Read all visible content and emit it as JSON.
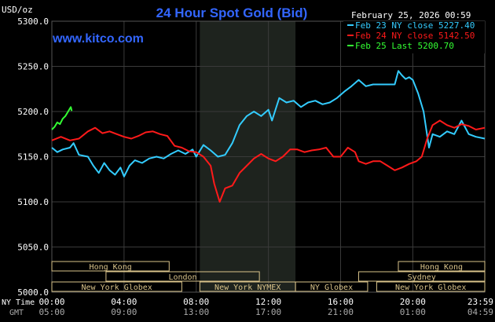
{
  "header": {
    "title": "24 Hour Spot Gold (Bid)",
    "date": "February 25, 2026 00:59",
    "site": "www.kitco.com",
    "unit": "USD/oz"
  },
  "legend": [
    {
      "text": "Feb 23 NY close 5227.40",
      "color": "#33ccff"
    },
    {
      "text": "Feb 24 NY close 5142.50",
      "color": "#ff1a1a"
    },
    {
      "text": "Feb 25 Last 5200.70",
      "color": "#33ff33"
    }
  ],
  "axis_row_labels": {
    "ny": "NY Time",
    "gmt": "GMT"
  },
  "markets": [
    {
      "label": "Hong Kong",
      "start": 0,
      "end": 6.5,
      "row": 0
    },
    {
      "label": "Hong Kong",
      "start": 19.2,
      "end": 23.99,
      "row": 0
    },
    {
      "label": "London",
      "start": 3,
      "end": 11.5,
      "row": 1
    },
    {
      "label": "Sydney",
      "start": 17,
      "end": 23.99,
      "row": 1
    },
    {
      "label": "New York Globex",
      "start": 0,
      "end": 7.2,
      "row": 2
    },
    {
      "label": "New York NYMEX",
      "start": 8.2,
      "end": 13.5,
      "row": 2
    },
    {
      "label": "NY Globex",
      "start": 13.5,
      "end": 17.5,
      "row": 2
    },
    {
      "label": "New York Globex",
      "start": 18,
      "end": 23.99,
      "row": 2
    }
  ],
  "colors": {
    "background": "#000000",
    "grid": "#3a3a3a",
    "session_shade": "#1e231e",
    "axis_text": "#ffffff",
    "title": "#3366ff",
    "market_bar": "#d9c38a"
  },
  "chart_data": {
    "type": "line",
    "title": "24 Hour Spot Gold (Bid)",
    "ylabel": "USD/oz",
    "ylim": [
      5000,
      5300
    ],
    "yticks": [
      "5000.0",
      "5050.0",
      "5100.0",
      "5150.0",
      "5200.0",
      "5250.0",
      "5300.0"
    ],
    "xlim": [
      0,
      23.99
    ],
    "xticks_ny": [
      "00:00",
      "04:00",
      "08:00",
      "12:00",
      "16:00",
      "20:00",
      "23:59"
    ],
    "xticks_gmt": [
      "05:00",
      "09:00",
      "13:00",
      "17:00",
      "21:00",
      "01:00",
      "04:59"
    ],
    "x_tick_hours": [
      0,
      4,
      8,
      12,
      16,
      20,
      23.99
    ],
    "shaded_session_hours": [
      8.2,
      13.5
    ],
    "grid": true,
    "legend_position": "top-right",
    "series": [
      {
        "name": "Feb 23 NY close 5227.40",
        "color": "#33ccff",
        "points": [
          [
            0,
            5160
          ],
          [
            0.3,
            5155
          ],
          [
            0.6,
            5158
          ],
          [
            1.0,
            5160
          ],
          [
            1.2,
            5165
          ],
          [
            1.5,
            5152
          ],
          [
            2.0,
            5150
          ],
          [
            2.3,
            5140
          ],
          [
            2.6,
            5132
          ],
          [
            2.9,
            5143
          ],
          [
            3.2,
            5135
          ],
          [
            3.5,
            5130
          ],
          [
            3.8,
            5138
          ],
          [
            4.0,
            5128
          ],
          [
            4.3,
            5140
          ],
          [
            4.6,
            5146
          ],
          [
            5.0,
            5143
          ],
          [
            5.4,
            5148
          ],
          [
            5.8,
            5150
          ],
          [
            6.2,
            5148
          ],
          [
            6.6,
            5153
          ],
          [
            7.0,
            5157
          ],
          [
            7.4,
            5153
          ],
          [
            7.8,
            5158
          ],
          [
            8.0,
            5150
          ],
          [
            8.4,
            5163
          ],
          [
            8.8,
            5157
          ],
          [
            9.2,
            5150
          ],
          [
            9.6,
            5152
          ],
          [
            10.0,
            5165
          ],
          [
            10.4,
            5185
          ],
          [
            10.8,
            5195
          ],
          [
            11.2,
            5200
          ],
          [
            11.6,
            5195
          ],
          [
            12.0,
            5202
          ],
          [
            12.2,
            5190
          ],
          [
            12.6,
            5215
          ],
          [
            13.0,
            5210
          ],
          [
            13.4,
            5212
          ],
          [
            13.8,
            5205
          ],
          [
            14.2,
            5210
          ],
          [
            14.6,
            5212
          ],
          [
            15.0,
            5208
          ],
          [
            15.4,
            5210
          ],
          [
            15.8,
            5215
          ],
          [
            16.2,
            5222
          ],
          [
            16.6,
            5228
          ],
          [
            17.0,
            5235
          ],
          [
            17.4,
            5228
          ],
          [
            17.8,
            5230
          ],
          [
            18.2,
            5230
          ],
          [
            18.6,
            5230
          ],
          [
            19.0,
            5230
          ],
          [
            19.2,
            5245
          ],
          [
            19.4,
            5240
          ],
          [
            19.6,
            5236
          ],
          [
            19.8,
            5238
          ],
          [
            20.0,
            5235
          ],
          [
            20.3,
            5220
          ],
          [
            20.6,
            5200
          ],
          [
            20.9,
            5160
          ],
          [
            21.1,
            5175
          ],
          [
            21.5,
            5172
          ],
          [
            21.9,
            5178
          ],
          [
            22.3,
            5175
          ],
          [
            22.7,
            5190
          ],
          [
            23.1,
            5175
          ],
          [
            23.5,
            5172
          ],
          [
            23.99,
            5170
          ]
        ]
      },
      {
        "name": "Feb 24 NY close 5142.50",
        "color": "#ff1a1a",
        "points": [
          [
            0,
            5168
          ],
          [
            0.5,
            5172
          ],
          [
            1.0,
            5168
          ],
          [
            1.5,
            5170
          ],
          [
            2.0,
            5178
          ],
          [
            2.4,
            5182
          ],
          [
            2.8,
            5176
          ],
          [
            3.2,
            5178
          ],
          [
            3.6,
            5175
          ],
          [
            4.0,
            5172
          ],
          [
            4.4,
            5170
          ],
          [
            4.8,
            5173
          ],
          [
            5.2,
            5177
          ],
          [
            5.6,
            5178
          ],
          [
            6.0,
            5175
          ],
          [
            6.4,
            5173
          ],
          [
            6.8,
            5162
          ],
          [
            7.2,
            5160
          ],
          [
            7.6,
            5156
          ],
          [
            8.0,
            5155
          ],
          [
            8.4,
            5150
          ],
          [
            8.8,
            5140
          ],
          [
            9.0,
            5120
          ],
          [
            9.3,
            5100
          ],
          [
            9.6,
            5115
          ],
          [
            10.0,
            5118
          ],
          [
            10.4,
            5132
          ],
          [
            10.8,
            5140
          ],
          [
            11.2,
            5148
          ],
          [
            11.6,
            5153
          ],
          [
            12.0,
            5148
          ],
          [
            12.4,
            5145
          ],
          [
            12.8,
            5150
          ],
          [
            13.2,
            5158
          ],
          [
            13.6,
            5158
          ],
          [
            14.0,
            5155
          ],
          [
            14.4,
            5157
          ],
          [
            14.8,
            5158
          ],
          [
            15.2,
            5160
          ],
          [
            15.6,
            5150
          ],
          [
            16.0,
            5150
          ],
          [
            16.4,
            5160
          ],
          [
            16.8,
            5155
          ],
          [
            17.0,
            5145
          ],
          [
            17.4,
            5142
          ],
          [
            17.8,
            5145
          ],
          [
            18.2,
            5145
          ],
          [
            18.6,
            5140
          ],
          [
            19.0,
            5135
          ],
          [
            19.4,
            5138
          ],
          [
            19.8,
            5142
          ],
          [
            20.2,
            5145
          ],
          [
            20.5,
            5150
          ],
          [
            20.8,
            5170
          ],
          [
            21.1,
            5185
          ],
          [
            21.5,
            5190
          ],
          [
            21.9,
            5185
          ],
          [
            22.3,
            5182
          ],
          [
            22.7,
            5186
          ],
          [
            23.1,
            5184
          ],
          [
            23.5,
            5180
          ],
          [
            23.99,
            5182
          ]
        ]
      },
      {
        "name": "Feb 25 Last 5200.70",
        "color": "#33ff33",
        "points": [
          [
            0,
            5180
          ],
          [
            0.15,
            5183
          ],
          [
            0.3,
            5188
          ],
          [
            0.45,
            5186
          ],
          [
            0.6,
            5192
          ],
          [
            0.75,
            5195
          ],
          [
            0.9,
            5200
          ],
          [
            1.05,
            5205
          ],
          [
            1.1,
            5200.7
          ]
        ]
      }
    ]
  }
}
